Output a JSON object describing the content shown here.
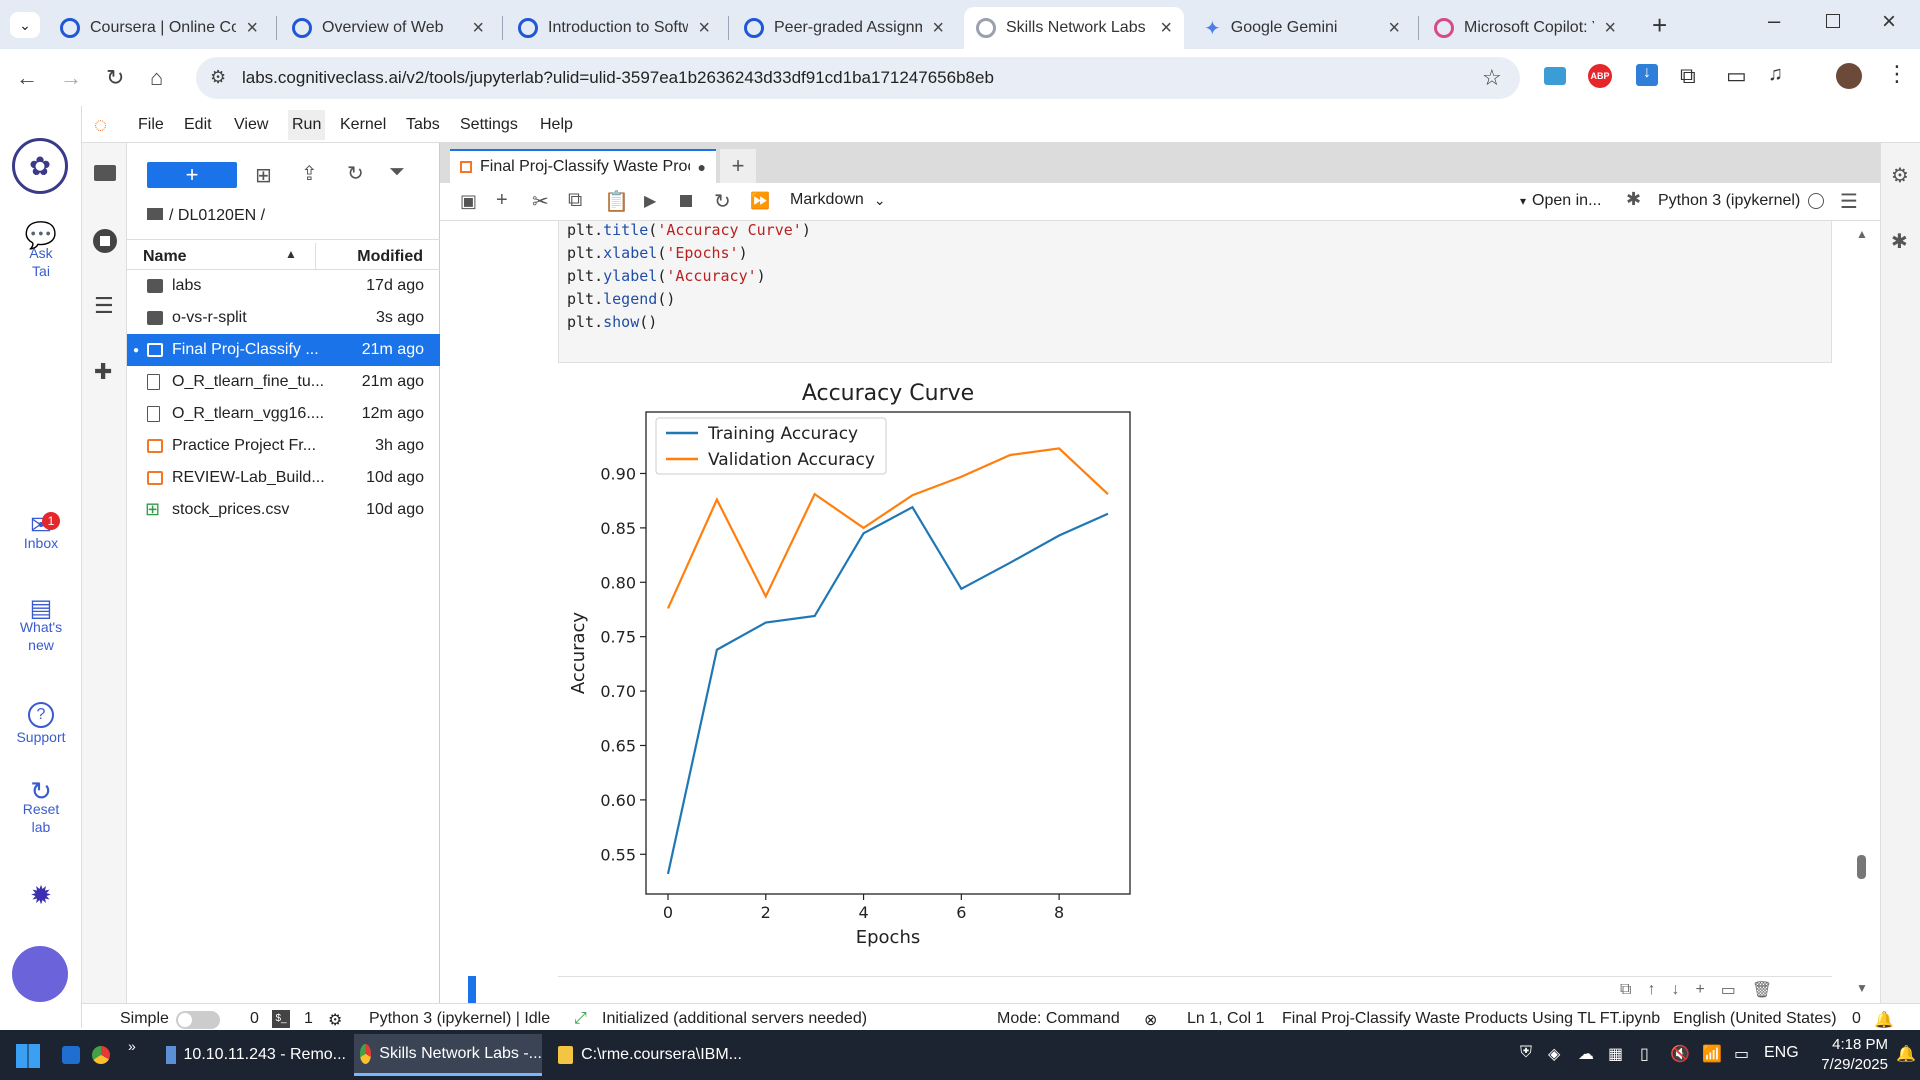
{
  "browser": {
    "tabs": [
      {
        "title": "Coursera | Online Co",
        "favicon": "coursera-icon"
      },
      {
        "title": "Overview of Web",
        "favicon": "coursera-icon"
      },
      {
        "title": "Introduction to Softw",
        "favicon": "coursera-icon"
      },
      {
        "title": "Peer-graded Assignm",
        "favicon": "coursera-icon"
      },
      {
        "title": "Skills Network Labs",
        "favicon": "skills-network-icon",
        "active": true
      },
      {
        "title": "Google Gemini",
        "favicon": "gemini-icon"
      },
      {
        "title": "Microsoft Copilot: Yo",
        "favicon": "copilot-icon"
      }
    ],
    "url": "labs.cognitiveclass.ai/v2/tools/jupyterlab?ulid=ulid-3597ea1b2636243d33df91cd1ba171247656b8eb",
    "accent": "#1f57d6"
  },
  "menubar": [
    "File",
    "Edit",
    "View",
    "Run",
    "Kernel",
    "Tabs",
    "Settings",
    "Help"
  ],
  "rail": {
    "ask": "Ask\nTai",
    "inbox": "Inbox",
    "inbox_badge": "1",
    "whats_new": "What's\nnew",
    "support": "Support",
    "reset": "Reset\nlab"
  },
  "filebrowser": {
    "new_label": "+",
    "breadcrumb": "/ DL0120EN /",
    "col_name": "Name",
    "col_modified": "Modified",
    "files": [
      {
        "name": "labs",
        "modified": "17d ago",
        "type": "folder"
      },
      {
        "name": "o-vs-r-split",
        "modified": "3s ago",
        "type": "folder"
      },
      {
        "name": "Final Proj-Classify ...",
        "modified": "21m ago",
        "type": "notebook",
        "selected": true
      },
      {
        "name": "O_R_tlearn_fine_tu...",
        "modified": "21m ago",
        "type": "file"
      },
      {
        "name": "O_R_tlearn_vgg16....",
        "modified": "12m ago",
        "type": "file"
      },
      {
        "name": "Practice Project Fr...",
        "modified": "3h ago",
        "type": "notebook"
      },
      {
        "name": "REVIEW-Lab_Build...",
        "modified": "10d ago",
        "type": "notebook"
      },
      {
        "name": "stock_prices.csv",
        "modified": "10d ago",
        "type": "csv"
      }
    ]
  },
  "notebook": {
    "tab_title": "Final Proj-Classify Waste Proc",
    "cell_type": "Markdown",
    "open_in": "Open in...",
    "kernel": "Python 3 (ipykernel)",
    "code": [
      {
        "obj": "plt",
        "fn": "title",
        "arg": "'Accuracy Curve'"
      },
      {
        "obj": "plt",
        "fn": "xlabel",
        "arg": "'Epochs'"
      },
      {
        "obj": "plt",
        "fn": "ylabel",
        "arg": "'Accuracy'"
      },
      {
        "obj": "plt",
        "fn": "legend",
        "arg": ""
      },
      {
        "obj": "plt",
        "fn": "show",
        "arg": ""
      }
    ]
  },
  "chart_data": {
    "type": "line",
    "title": "Accuracy Curve",
    "xlabel": "Epochs",
    "ylabel": "Accuracy",
    "x": [
      0,
      1,
      2,
      3,
      4,
      5,
      6,
      7,
      8,
      9
    ],
    "xticks": [
      0,
      2,
      4,
      6,
      8
    ],
    "yticks": [
      0.55,
      0.6,
      0.65,
      0.7,
      0.75,
      0.8,
      0.85,
      0.9
    ],
    "xlim": [
      -0.45,
      9.45
    ],
    "ylim": [
      0.5135,
      0.9565
    ],
    "legend": "top-left",
    "grid": false,
    "series": [
      {
        "name": "Training Accuracy",
        "color": "#1f77b4",
        "values": [
          0.532,
          0.738,
          0.763,
          0.769,
          0.845,
          0.869,
          0.794,
          0.818,
          0.843,
          0.863
        ]
      },
      {
        "name": "Validation Accuracy",
        "color": "#ff7f0e",
        "values": [
          0.776,
          0.876,
          0.787,
          0.881,
          0.85,
          0.88,
          0.897,
          0.917,
          0.923,
          0.881
        ]
      }
    ]
  },
  "statusbar": {
    "mode_simple": "Simple",
    "count_a": "0",
    "count_b": "1",
    "kernel_status": "Python 3 (ipykernel) | Idle",
    "init": "Initialized (additional servers needed)",
    "mode": "Mode: Command",
    "position": "Ln 1, Col 1",
    "filename": "Final Proj-Classify Waste Products Using TL FT.ipynb",
    "language": "English (United States)",
    "notif_count": "0"
  },
  "taskbar": {
    "items": [
      "10.10.11.243 - Remo...",
      "Skills Network Labs -...",
      "C:\\rme.coursera\\IBM..."
    ],
    "lang": "ENG",
    "time": "4:18 PM",
    "date": "7/29/2025"
  }
}
